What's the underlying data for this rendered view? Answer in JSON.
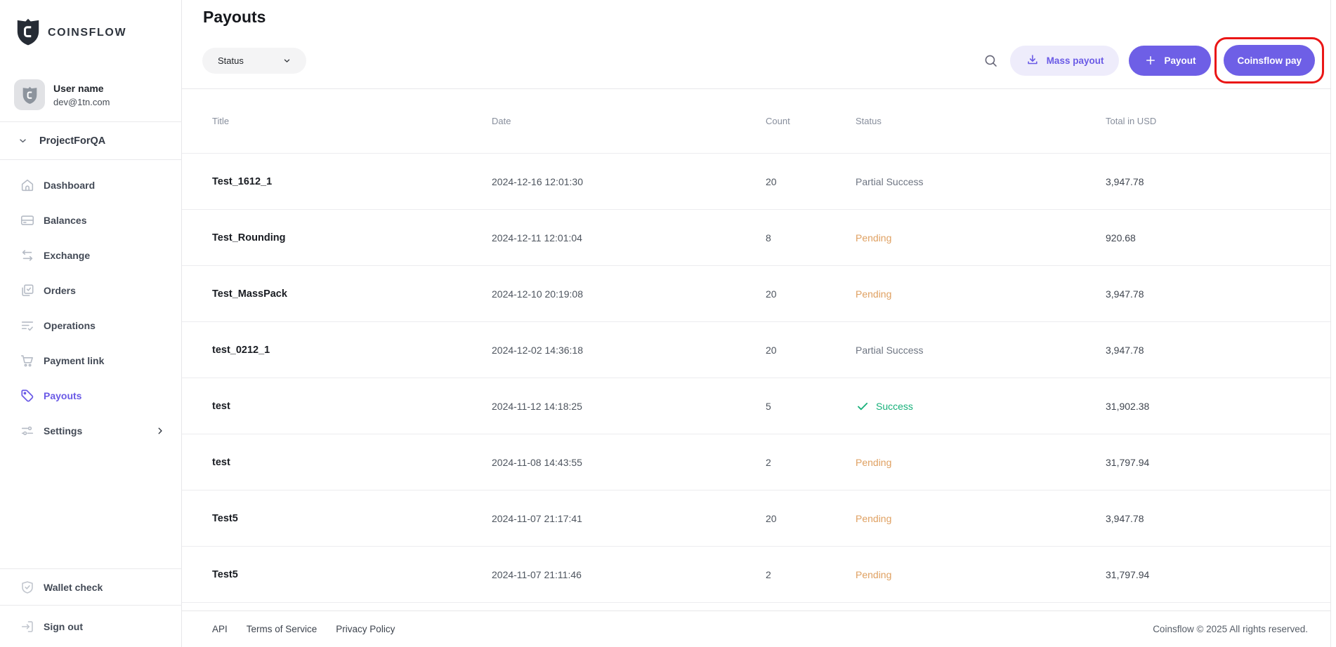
{
  "brand": {
    "name": "COINSFLOW",
    "logo_icon": "coinsflow-shield"
  },
  "user": {
    "name": "User name",
    "email": "dev@1tn.com",
    "avatar_icon": "avatar-shield"
  },
  "project": {
    "name": "ProjectForQA"
  },
  "sidebar": {
    "items": [
      {
        "label": "Dashboard",
        "icon": "home-icon",
        "active": false
      },
      {
        "label": "Balances",
        "icon": "card-icon",
        "active": false
      },
      {
        "label": "Exchange",
        "icon": "exchange-icon",
        "active": false
      },
      {
        "label": "Orders",
        "icon": "orders-icon",
        "active": false
      },
      {
        "label": "Operations",
        "icon": "operations-icon",
        "active": false
      },
      {
        "label": "Payment link",
        "icon": "cart-icon",
        "active": false
      },
      {
        "label": "Payouts",
        "icon": "tag-icon",
        "active": true
      },
      {
        "label": "Settings",
        "icon": "sliders-icon",
        "active": false,
        "has_chevron": true
      }
    ],
    "bottom_items": [
      {
        "label": "Wallet check",
        "icon": "shield-check-icon"
      },
      {
        "label": "Sign out",
        "icon": "sign-out-icon"
      }
    ]
  },
  "main": {
    "title": "Payouts",
    "toolbar": {
      "status_filter_label": "Status",
      "search_icon": "search-icon",
      "mass_payout_label": "Mass payout",
      "payout_label": "Payout",
      "coinsflow_pay_label": "Coinsflow pay",
      "highlight_note": "red annotation box around Coinsflow pay button"
    },
    "table": {
      "columns": [
        "Title",
        "Date",
        "Count",
        "Status",
        "Total in USD"
      ],
      "rows": [
        {
          "title": "Test_1612_1",
          "date": "2024-12-16 12:01:30",
          "count": "20",
          "status": "Partial Success",
          "status_type": "partial",
          "total": "3,947.78"
        },
        {
          "title": "Test_Rounding",
          "date": "2024-12-11 12:01:04",
          "count": "8",
          "status": "Pending",
          "status_type": "pending",
          "total": "920.68"
        },
        {
          "title": "Test_MassPack",
          "date": "2024-12-10 20:19:08",
          "count": "20",
          "status": "Pending",
          "status_type": "pending",
          "total": "3,947.78"
        },
        {
          "title": "test_0212_1",
          "date": "2024-12-02 14:36:18",
          "count": "20",
          "status": "Partial Success",
          "status_type": "partial",
          "total": "3,947.78"
        },
        {
          "title": "test",
          "date": "2024-11-12 14:18:25",
          "count": "5",
          "status": "Success",
          "status_type": "success",
          "total": "31,902.38"
        },
        {
          "title": "test",
          "date": "2024-11-08 14:43:55",
          "count": "2",
          "status": "Pending",
          "status_type": "pending",
          "total": "31,797.94"
        },
        {
          "title": "Test5",
          "date": "2024-11-07 21:17:41",
          "count": "20",
          "status": "Pending",
          "status_type": "pending",
          "total": "3,947.78"
        },
        {
          "title": "Test5",
          "date": "2024-11-07 21:11:46",
          "count": "2",
          "status": "Pending",
          "status_type": "pending",
          "total": "31,797.94"
        }
      ]
    }
  },
  "footer": {
    "links": [
      "API",
      "Terms of Service",
      "Privacy Policy"
    ],
    "copyright": "Coinsflow © 2025 All rights reserved."
  },
  "colors": {
    "accent": "#6e5fe6",
    "accent_light_bg": "#eeecfb",
    "pending": "#dfa061",
    "success": "#17b07a",
    "partial": "#6e7582",
    "annotation_red": "#ea1616"
  }
}
